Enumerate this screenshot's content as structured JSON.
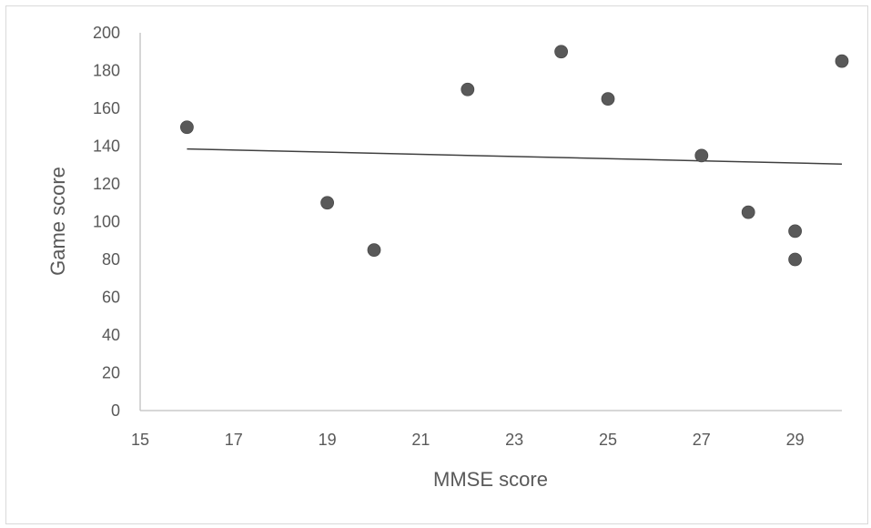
{
  "chart_data": {
    "type": "scatter",
    "title": "",
    "xlabel": "MMSE score",
    "ylabel": "Game score",
    "xlim": [
      15,
      30
    ],
    "ylim": [
      0,
      200
    ],
    "x_ticks": [
      15,
      17,
      19,
      21,
      23,
      25,
      27,
      29
    ],
    "y_ticks": [
      0,
      20,
      40,
      60,
      80,
      100,
      120,
      140,
      160,
      180,
      200
    ],
    "grid": false,
    "legend": "none",
    "points": [
      {
        "x": 16,
        "y": 150
      },
      {
        "x": 19,
        "y": 110
      },
      {
        "x": 20,
        "y": 85
      },
      {
        "x": 22,
        "y": 170
      },
      {
        "x": 24,
        "y": 190
      },
      {
        "x": 25,
        "y": 165
      },
      {
        "x": 27,
        "y": 135
      },
      {
        "x": 28,
        "y": 105
      },
      {
        "x": 29,
        "y": 95
      },
      {
        "x": 29,
        "y": 80
      },
      {
        "x": 30,
        "y": 185
      }
    ],
    "trendline": {
      "type": "linear",
      "x": [
        16,
        30
      ],
      "y": [
        138.5,
        130.5
      ]
    },
    "colors": {
      "marker": "#595959",
      "trendline": "#404040",
      "axis": "#bfbfbf",
      "text": "#595959"
    }
  }
}
